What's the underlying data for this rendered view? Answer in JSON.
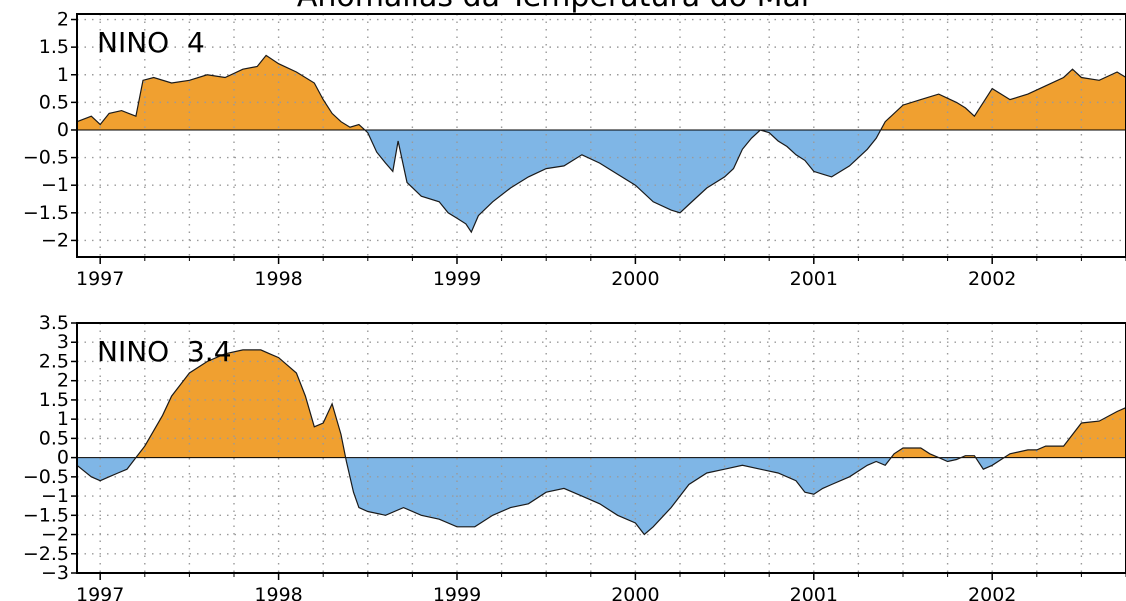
{
  "title": "Anomalias da Temperatura do Mar",
  "colors": {
    "positive": "#f0a030",
    "negative": "#7fb6e6",
    "line": "#1a1a1a",
    "grid": "#9a9a9a"
  },
  "chart_data": [
    {
      "type": "area",
      "panel_label": "NINO  4",
      "x_tick_labels": [
        "1997",
        "1998",
        "1999",
        "2000",
        "2001",
        "2002"
      ],
      "y_tick_labels": [
        "2",
        "1.5",
        "1",
        "0.5",
        "0",
        "−0.5",
        "−1",
        "−1.5",
        "−2"
      ],
      "y_ticks": [
        2,
        1.5,
        1,
        0.5,
        0,
        -0.5,
        -1,
        -1.5,
        -2
      ],
      "xlim": [
        1996.87,
        2002.75
      ],
      "ylim": [
        -2.3,
        2.1
      ],
      "grid": true,
      "x": [
        1996.87,
        1996.95,
        1997.0,
        1997.05,
        1997.12,
        1997.2,
        1997.24,
        1997.3,
        1997.4,
        1997.5,
        1997.6,
        1997.7,
        1997.8,
        1997.88,
        1997.93,
        1998.0,
        1998.1,
        1998.2,
        1998.25,
        1998.3,
        1998.35,
        1998.4,
        1998.45,
        1998.5,
        1998.55,
        1998.6,
        1998.64,
        1998.67,
        1998.72,
        1998.8,
        1998.9,
        1998.95,
        1999.0,
        1999.05,
        1999.08,
        1999.12,
        1999.2,
        1999.3,
        1999.4,
        1999.5,
        1999.6,
        1999.7,
        1999.8,
        1999.9,
        2000.0,
        2000.1,
        2000.2,
        2000.25,
        2000.3,
        2000.4,
        2000.5,
        2000.55,
        2000.6,
        2000.65,
        2000.7,
        2000.75,
        2000.8,
        2000.85,
        2000.9,
        2000.95,
        2001.0,
        2001.05,
        2001.1,
        2001.2,
        2001.3,
        2001.35,
        2001.4,
        2001.5,
        2001.6,
        2001.7,
        2001.8,
        2001.85,
        2001.9,
        2001.95,
        2002.0,
        2002.1,
        2002.2,
        2002.3,
        2002.4,
        2002.45,
        2002.5,
        2002.6,
        2002.7,
        2002.75
      ],
      "y": [
        0.15,
        0.25,
        0.1,
        0.3,
        0.35,
        0.25,
        0.9,
        0.95,
        0.85,
        0.9,
        1.0,
        0.95,
        1.1,
        1.15,
        1.35,
        1.2,
        1.05,
        0.85,
        0.55,
        0.3,
        0.15,
        0.05,
        0.1,
        -0.05,
        -0.4,
        -0.6,
        -0.75,
        -0.2,
        -0.95,
        -1.2,
        -1.3,
        -1.5,
        -1.6,
        -1.7,
        -1.85,
        -1.55,
        -1.3,
        -1.05,
        -0.85,
        -0.7,
        -0.65,
        -0.45,
        -0.6,
        -0.8,
        -1.0,
        -1.3,
        -1.45,
        -1.5,
        -1.35,
        -1.05,
        -0.85,
        -0.7,
        -0.35,
        -0.15,
        0.0,
        -0.05,
        -0.2,
        -0.3,
        -0.45,
        -0.55,
        -0.75,
        -0.8,
        -0.85,
        -0.65,
        -0.35,
        -0.15,
        0.15,
        0.45,
        0.55,
        0.65,
        0.5,
        0.4,
        0.25,
        0.5,
        0.75,
        0.55,
        0.65,
        0.8,
        0.95,
        1.1,
        0.95,
        0.9,
        1.05,
        0.95
      ]
    },
    {
      "type": "area",
      "panel_label": "NINO  3.4",
      "x_tick_labels": [
        "1997",
        "1998",
        "1999",
        "2000",
        "2001",
        "2002"
      ],
      "y_tick_labels": [
        "3.5",
        "3",
        "2.5",
        "2",
        "1.5",
        "1",
        "0.5",
        "0",
        "−0.5",
        "−1",
        "−1.5",
        "−2",
        "−2.5",
        "−3"
      ],
      "y_ticks": [
        3.5,
        3,
        2.5,
        2,
        1.5,
        1,
        0.5,
        0,
        -0.5,
        -1,
        -1.5,
        -2,
        -2.5,
        -3
      ],
      "xlim": [
        1996.87,
        2002.75
      ],
      "ylim": [
        -3.0,
        3.5
      ],
      "grid": true,
      "x": [
        1996.87,
        1996.95,
        1997.0,
        1997.05,
        1997.1,
        1997.15,
        1997.2,
        1997.25,
        1997.3,
        1997.35,
        1997.4,
        1997.5,
        1997.6,
        1997.7,
        1997.8,
        1997.9,
        1997.95,
        1998.0,
        1998.1,
        1998.15,
        1998.2,
        1998.25,
        1998.3,
        1998.35,
        1998.38,
        1998.42,
        1998.45,
        1998.5,
        1998.6,
        1998.7,
        1998.8,
        1998.9,
        1999.0,
        1999.1,
        1999.2,
        1999.3,
        1999.4,
        1999.5,
        1999.6,
        1999.7,
        1999.8,
        1999.9,
        2000.0,
        2000.05,
        2000.1,
        2000.2,
        2000.3,
        2000.4,
        2000.5,
        2000.6,
        2000.7,
        2000.8,
        2000.9,
        2000.95,
        2001.0,
        2001.05,
        2001.1,
        2001.2,
        2001.3,
        2001.35,
        2001.4,
        2001.45,
        2001.5,
        2001.6,
        2001.65,
        2001.7,
        2001.75,
        2001.8,
        2001.85,
        2001.9,
        2001.95,
        2002.0,
        2002.1,
        2002.2,
        2002.25,
        2002.3,
        2002.4,
        2002.5,
        2002.6,
        2002.7,
        2002.75
      ],
      "y": [
        -0.2,
        -0.5,
        -0.6,
        -0.5,
        -0.4,
        -0.3,
        0.0,
        0.3,
        0.7,
        1.1,
        1.6,
        2.2,
        2.5,
        2.7,
        2.8,
        2.8,
        2.7,
        2.6,
        2.2,
        1.6,
        0.8,
        0.9,
        1.4,
        0.6,
        -0.1,
        -0.9,
        -1.3,
        -1.4,
        -1.5,
        -1.3,
        -1.5,
        -1.6,
        -1.8,
        -1.8,
        -1.5,
        -1.3,
        -1.2,
        -0.9,
        -0.8,
        -1.0,
        -1.2,
        -1.5,
        -1.7,
        -2.0,
        -1.8,
        -1.3,
        -0.7,
        -0.4,
        -0.3,
        -0.2,
        -0.3,
        -0.4,
        -0.6,
        -0.9,
        -0.95,
        -0.8,
        -0.7,
        -0.5,
        -0.2,
        -0.1,
        -0.2,
        0.1,
        0.25,
        0.25,
        0.1,
        0.0,
        -0.1,
        -0.05,
        0.05,
        0.05,
        -0.3,
        -0.2,
        0.1,
        0.2,
        0.2,
        0.3,
        0.3,
        0.9,
        0.95,
        1.2,
        1.3
      ]
    }
  ]
}
